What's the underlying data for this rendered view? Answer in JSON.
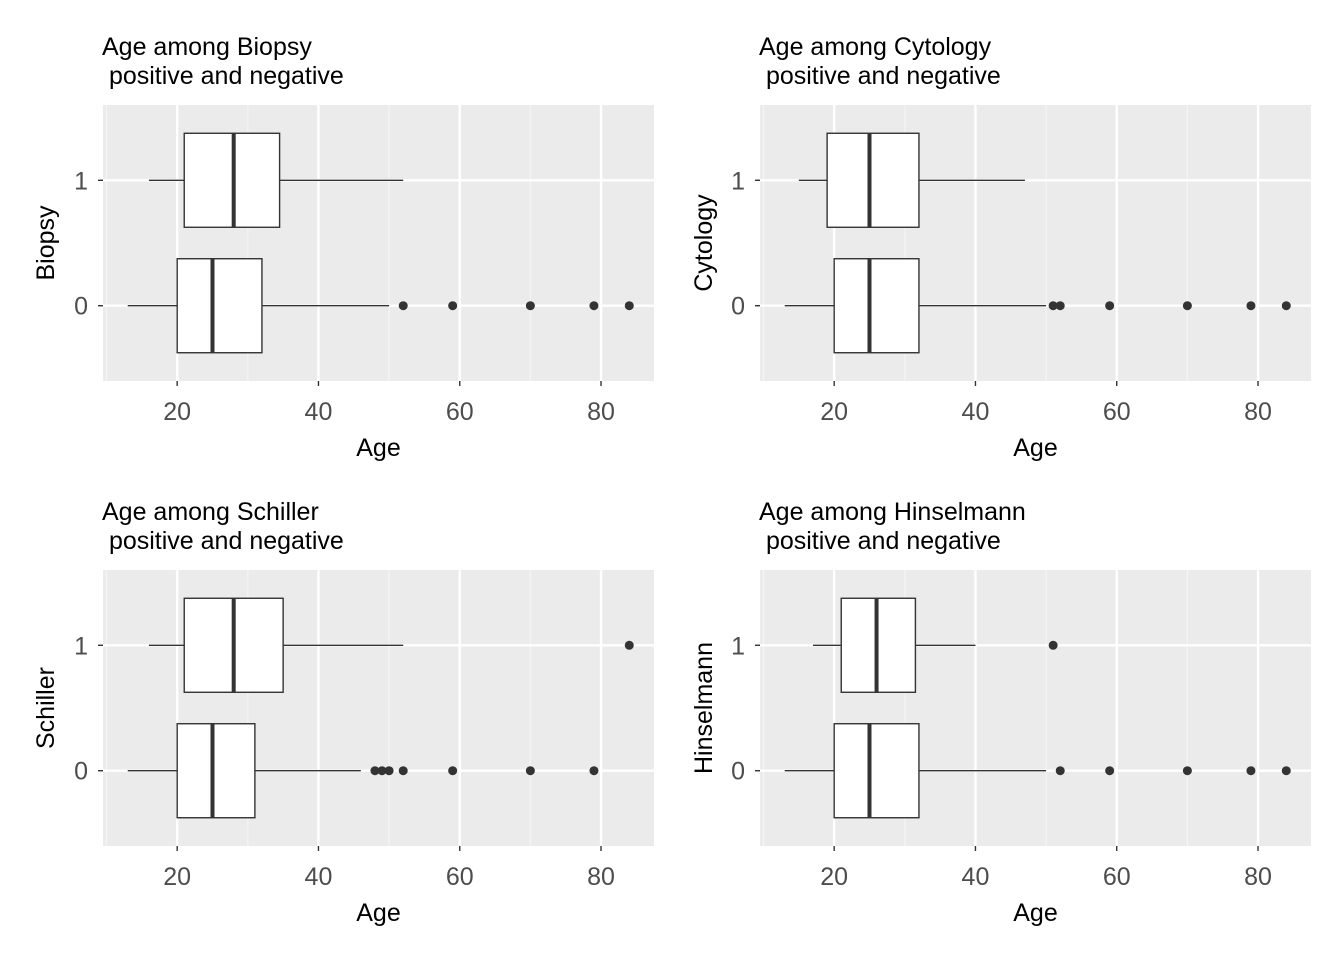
{
  "chart_data": [
    {
      "type": "boxplot",
      "orientation": "horizontal",
      "title": "Age among Biopsy\n positive and negative",
      "xlabel": "Age",
      "ylabel": "Biopsy",
      "xlim": [
        9.5,
        87.5
      ],
      "x_ticks": [
        20,
        40,
        60,
        80
      ],
      "categories": [
        "1",
        "0"
      ],
      "boxes": [
        {
          "category": "1",
          "whisker_low": 16,
          "q1": 21,
          "median": 28,
          "q3": 34.5,
          "whisker_high": 52,
          "outliers": []
        },
        {
          "category": "0",
          "whisker_low": 13,
          "q1": 20,
          "median": 25,
          "q3": 32,
          "whisker_high": 50,
          "outliers": [
            52,
            59,
            70,
            79,
            84
          ]
        }
      ],
      "grid": true
    },
    {
      "type": "boxplot",
      "orientation": "horizontal",
      "title": "Age among Cytology\n positive and negative",
      "xlabel": "Age",
      "ylabel": "Cytology",
      "xlim": [
        9.5,
        87.5
      ],
      "x_ticks": [
        20,
        40,
        60,
        80
      ],
      "categories": [
        "1",
        "0"
      ],
      "boxes": [
        {
          "category": "1",
          "whisker_low": 15,
          "q1": 19,
          "median": 25,
          "q3": 32,
          "whisker_high": 47,
          "outliers": []
        },
        {
          "category": "0",
          "whisker_low": 13,
          "q1": 20,
          "median": 25,
          "q3": 32,
          "whisker_high": 50,
          "outliers": [
            51,
            52,
            59,
            70,
            79,
            84
          ]
        }
      ],
      "grid": true
    },
    {
      "type": "boxplot",
      "orientation": "horizontal",
      "title": "Age among Schiller\n positive and negative",
      "xlabel": "Age",
      "ylabel": "Schiller",
      "xlim": [
        9.5,
        87.5
      ],
      "x_ticks": [
        20,
        40,
        60,
        80
      ],
      "categories": [
        "1",
        "0"
      ],
      "boxes": [
        {
          "category": "1",
          "whisker_low": 16,
          "q1": 21,
          "median": 28,
          "q3": 35,
          "whisker_high": 52,
          "outliers": [
            84
          ]
        },
        {
          "category": "0",
          "whisker_low": 13,
          "q1": 20,
          "median": 25,
          "q3": 31,
          "whisker_high": 46,
          "outliers": [
            48,
            49,
            50,
            52,
            59,
            70,
            79
          ]
        }
      ],
      "grid": true
    },
    {
      "type": "boxplot",
      "orientation": "horizontal",
      "title": "Age among Hinselmann\n positive and negative",
      "xlabel": "Age",
      "ylabel": "Hinselmann",
      "xlim": [
        9.5,
        87.5
      ],
      "x_ticks": [
        20,
        40,
        60,
        80
      ],
      "categories": [
        "1",
        "0"
      ],
      "boxes": [
        {
          "category": "1",
          "whisker_low": 17,
          "q1": 21,
          "median": 26,
          "q3": 31.5,
          "whisker_high": 40,
          "outliers": [
            51
          ]
        },
        {
          "category": "0",
          "whisker_low": 13,
          "q1": 20,
          "median": 25,
          "q3": 32,
          "whisker_high": 50,
          "outliers": [
            52,
            59,
            70,
            79,
            84
          ]
        }
      ],
      "grid": true
    }
  ],
  "colors": {
    "panel_background": "#EBEBEB",
    "grid_major": "#FFFFFF",
    "grid_minor": "#F5F5F5",
    "box_fill": "#FFFFFF",
    "box_line": "#333333",
    "outlier": "#333333",
    "tick_text": "#4D4D4D",
    "title_text": "#000000"
  }
}
